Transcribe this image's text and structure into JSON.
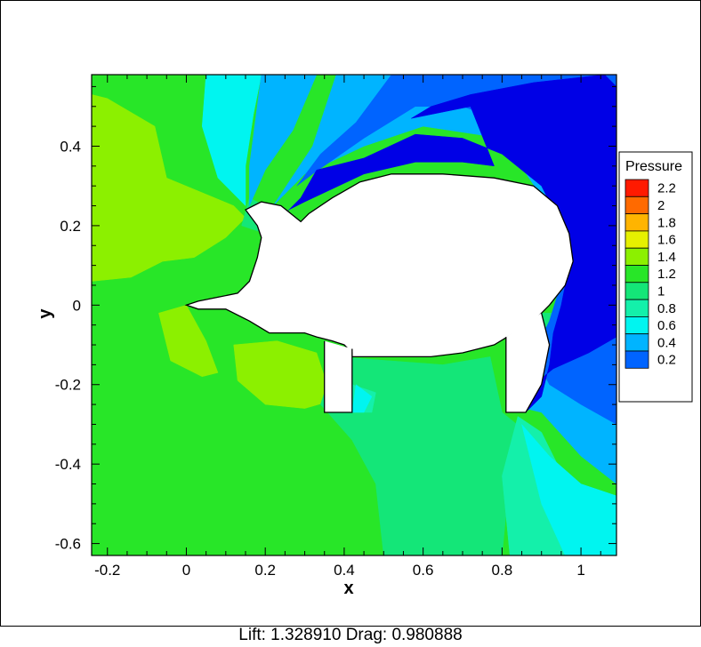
{
  "chart_data": {
    "type": "heatmap",
    "title": "",
    "xlabel": "x",
    "ylabel": "y",
    "xlim": [
      -0.24,
      1.09
    ],
    "ylim": [
      -0.63,
      0.58
    ],
    "x_ticks": [
      {
        "value": -0.2,
        "label": "-0.2"
      },
      {
        "value": 0,
        "label": "0"
      },
      {
        "value": 0.2,
        "label": "0.2"
      },
      {
        "value": 0.4,
        "label": "0.4"
      },
      {
        "value": 0.6,
        "label": "0.6"
      },
      {
        "value": 0.8,
        "label": "0.8"
      },
      {
        "value": 1,
        "label": "1"
      }
    ],
    "y_ticks": [
      {
        "value": -0.6,
        "label": "-0.6"
      },
      {
        "value": -0.4,
        "label": "-0.4"
      },
      {
        "value": -0.2,
        "label": "-0.2"
      },
      {
        "value": 0,
        "label": "0"
      },
      {
        "value": 0.2,
        "label": "0.2"
      },
      {
        "value": 0.4,
        "label": "0.4"
      }
    ],
    "colorbar": {
      "title": "Pressure",
      "placement": "right",
      "levels": [
        {
          "value": 2.2,
          "label": "2.2",
          "color": "#ff1a00"
        },
        {
          "value": 2.0,
          "label": "2",
          "color": "#ff6a00"
        },
        {
          "value": 1.8,
          "label": "1.8",
          "color": "#ffb400"
        },
        {
          "value": 1.6,
          "label": "1.6",
          "color": "#e6f000"
        },
        {
          "value": 1.4,
          "label": "1.4",
          "color": "#8cf000"
        },
        {
          "value": 1.2,
          "label": "1.2",
          "color": "#28e628"
        },
        {
          "value": 1.0,
          "label": "1",
          "color": "#14e678"
        },
        {
          "value": 0.8,
          "label": "0.8",
          "color": "#14f0aa"
        },
        {
          "value": 0.6,
          "label": "0.6",
          "color": "#00f5f0"
        },
        {
          "value": 0.4,
          "label": "0.4",
          "color": "#00b4ff"
        },
        {
          "value": 0.2,
          "label": "0.2",
          "color": "#0064ff"
        },
        {
          "value": 0.0,
          "label": "",
          "color": "#0000e6"
        }
      ]
    },
    "regions": [
      {
        "level": 1.2,
        "points": [
          [
            -0.24,
            0.58
          ],
          [
            1.09,
            0.58
          ],
          [
            1.09,
            -0.63
          ],
          [
            -0.24,
            -0.63
          ]
        ]
      },
      {
        "level": 1.4,
        "points": [
          [
            -0.24,
            0.53
          ],
          [
            -0.2,
            0.52
          ],
          [
            -0.08,
            0.45
          ],
          [
            -0.05,
            0.32
          ],
          [
            0.12,
            0.25
          ],
          [
            0.15,
            0.22
          ],
          [
            0.1,
            0.17
          ],
          [
            0.02,
            0.12
          ],
          [
            -0.06,
            0.11
          ],
          [
            -0.14,
            0.07
          ],
          [
            -0.24,
            0.06
          ]
        ]
      },
      {
        "level": 1.4,
        "points": [
          [
            -0.07,
            -0.02
          ],
          [
            0.0,
            0.0
          ],
          [
            0.05,
            -0.09
          ],
          [
            0.08,
            -0.17
          ],
          [
            0.04,
            -0.18
          ],
          [
            -0.04,
            -0.14
          ]
        ]
      },
      {
        "level": 1.4,
        "points": [
          [
            0.12,
            -0.1
          ],
          [
            0.23,
            -0.09
          ],
          [
            0.33,
            -0.12
          ],
          [
            0.37,
            -0.24
          ],
          [
            0.3,
            -0.26
          ],
          [
            0.2,
            -0.25
          ],
          [
            0.13,
            -0.19
          ]
        ]
      },
      {
        "level": 1.0,
        "points": [
          [
            0.16,
            0.27
          ],
          [
            0.24,
            0.23
          ],
          [
            0.2,
            0.18
          ],
          [
            0.14,
            0.2
          ]
        ]
      },
      {
        "level": 1.0,
        "points": [
          [
            0.38,
            -0.13
          ],
          [
            0.65,
            -0.15
          ],
          [
            0.77,
            -0.13
          ],
          [
            0.8,
            -0.27
          ],
          [
            0.85,
            -0.31
          ],
          [
            0.82,
            -0.42
          ],
          [
            0.8,
            -0.63
          ],
          [
            0.5,
            -0.63
          ],
          [
            0.48,
            -0.45
          ],
          [
            0.42,
            -0.34
          ],
          [
            0.34,
            -0.25
          ]
        ]
      },
      {
        "level": 1.0,
        "points": [
          [
            0.97,
            -0.02
          ],
          [
            1.0,
            -0.06
          ],
          [
            0.92,
            -0.14
          ],
          [
            0.9,
            -0.02
          ]
        ]
      },
      {
        "level": 0.8,
        "points": [
          [
            0.84,
            -0.28
          ],
          [
            0.9,
            -0.32
          ],
          [
            0.95,
            -0.42
          ],
          [
            1.02,
            -0.5
          ],
          [
            1.09,
            -0.55
          ],
          [
            1.09,
            -0.63
          ],
          [
            0.82,
            -0.63
          ],
          [
            0.8,
            -0.43
          ]
        ]
      },
      {
        "level": 0.8,
        "points": [
          [
            0.42,
            -0.2
          ],
          [
            0.48,
            -0.22
          ],
          [
            0.47,
            -0.27
          ],
          [
            0.42,
            -0.27
          ]
        ]
      },
      {
        "level": 0.6,
        "points": [
          [
            0.05,
            0.58
          ],
          [
            0.19,
            0.58
          ],
          [
            0.17,
            0.48
          ],
          [
            0.15,
            0.35
          ],
          [
            0.15,
            0.25
          ],
          [
            0.08,
            0.32
          ],
          [
            0.04,
            0.45
          ]
        ]
      },
      {
        "level": 0.6,
        "points": [
          [
            0.85,
            -0.3
          ],
          [
            0.92,
            -0.38
          ],
          [
            1.0,
            -0.45
          ],
          [
            1.09,
            -0.48
          ],
          [
            1.09,
            -0.63
          ],
          [
            0.96,
            -0.63
          ],
          [
            0.9,
            -0.5
          ]
        ]
      },
      {
        "level": 0.6,
        "points": [
          [
            0.43,
            -0.2
          ],
          [
            0.47,
            -0.23
          ],
          [
            0.45,
            -0.27
          ],
          [
            0.42,
            -0.27
          ]
        ]
      },
      {
        "level": 0.4,
        "points": [
          [
            0.19,
            0.58
          ],
          [
            0.33,
            0.58
          ],
          [
            0.27,
            0.44
          ],
          [
            0.2,
            0.34
          ],
          [
            0.16,
            0.25
          ],
          [
            0.16,
            0.35
          ]
        ]
      },
      {
        "level": 0.4,
        "points": [
          [
            0.38,
            0.58
          ],
          [
            1.09,
            0.58
          ],
          [
            1.09,
            -0.45
          ],
          [
            1.0,
            -0.38
          ],
          [
            0.9,
            -0.27
          ],
          [
            0.86,
            -0.26
          ],
          [
            0.9,
            -0.2
          ],
          [
            1.0,
            -0.1
          ],
          [
            0.95,
            0.2
          ],
          [
            0.8,
            0.42
          ],
          [
            0.6,
            0.45
          ],
          [
            0.45,
            0.4
          ],
          [
            0.3,
            0.33
          ],
          [
            0.22,
            0.25
          ],
          [
            0.32,
            0.4
          ]
        ]
      },
      {
        "level": 0.2,
        "points": [
          [
            0.52,
            0.58
          ],
          [
            1.09,
            0.58
          ],
          [
            1.09,
            -0.3
          ],
          [
            1.0,
            -0.25
          ],
          [
            0.92,
            -0.2
          ],
          [
            0.88,
            -0.12
          ],
          [
            0.92,
            -0.04
          ],
          [
            0.97,
            0.12
          ],
          [
            0.95,
            0.28
          ],
          [
            0.85,
            0.45
          ],
          [
            0.7,
            0.5
          ],
          [
            0.58,
            0.5
          ],
          [
            0.45,
            0.42
          ],
          [
            0.32,
            0.33
          ],
          [
            0.28,
            0.3
          ],
          [
            0.34,
            0.38
          ],
          [
            0.43,
            0.46
          ]
        ]
      },
      {
        "level": 0.0,
        "points": [
          [
            0.72,
            0.53
          ],
          [
            0.88,
            0.56
          ],
          [
            1.06,
            0.58
          ],
          [
            1.09,
            0.55
          ],
          [
            1.09,
            -0.08
          ],
          [
            1.02,
            -0.12
          ],
          [
            0.93,
            -0.16
          ],
          [
            0.88,
            -0.2
          ],
          [
            0.86,
            -0.27
          ],
          [
            0.9,
            -0.23
          ],
          [
            0.92,
            -0.15
          ],
          [
            0.93,
            -0.07
          ],
          [
            0.95,
            0.0
          ],
          [
            0.97,
            0.1
          ],
          [
            0.95,
            0.2
          ],
          [
            0.9,
            0.3
          ],
          [
            0.8,
            0.38
          ],
          [
            0.7,
            0.42
          ],
          [
            0.58,
            0.43
          ],
          [
            0.45,
            0.37
          ],
          [
            0.33,
            0.34
          ],
          [
            0.29,
            0.27
          ],
          [
            0.24,
            0.22
          ],
          [
            0.26,
            0.24
          ],
          [
            0.3,
            0.26
          ],
          [
            0.45,
            0.33
          ],
          [
            0.58,
            0.36
          ],
          [
            0.7,
            0.36
          ],
          [
            0.78,
            0.35
          ],
          [
            0.72,
            0.5
          ],
          [
            0.57,
            0.47
          ],
          [
            0.62,
            0.5
          ]
        ]
      }
    ],
    "body_outline": [
      [
        0.0,
        0.0
      ],
      [
        0.03,
        -0.01
      ],
      [
        0.1,
        -0.01
      ],
      [
        0.16,
        -0.04
      ],
      [
        0.21,
        -0.07
      ],
      [
        0.26,
        -0.07
      ],
      [
        0.3,
        -0.07
      ],
      [
        0.33,
        -0.08
      ],
      [
        0.37,
        -0.09
      ],
      [
        0.4,
        -0.1
      ],
      [
        0.42,
        -0.12
      ],
      [
        0.42,
        -0.13
      ],
      [
        0.46,
        -0.13
      ],
      [
        0.55,
        -0.13
      ],
      [
        0.62,
        -0.13
      ],
      [
        0.7,
        -0.12
      ],
      [
        0.78,
        -0.1
      ],
      [
        0.83,
        -0.07
      ],
      [
        0.88,
        -0.04
      ],
      [
        0.92,
        0.0
      ],
      [
        0.96,
        0.05
      ],
      [
        0.98,
        0.11
      ],
      [
        0.97,
        0.18
      ],
      [
        0.94,
        0.25
      ],
      [
        0.88,
        0.3
      ],
      [
        0.78,
        0.32
      ],
      [
        0.65,
        0.33
      ],
      [
        0.52,
        0.33
      ],
      [
        0.44,
        0.31
      ],
      [
        0.37,
        0.27
      ],
      [
        0.31,
        0.23
      ],
      [
        0.29,
        0.21
      ],
      [
        0.24,
        0.25
      ],
      [
        0.19,
        0.26
      ],
      [
        0.15,
        0.24
      ],
      [
        0.18,
        0.2
      ],
      [
        0.19,
        0.17
      ],
      [
        0.18,
        0.12
      ],
      [
        0.16,
        0.06
      ],
      [
        0.13,
        0.03
      ],
      [
        0.08,
        0.02
      ],
      [
        0.03,
        0.01
      ]
    ]
  },
  "caption": "Lift: 1.328910 Drag: 0.980888"
}
